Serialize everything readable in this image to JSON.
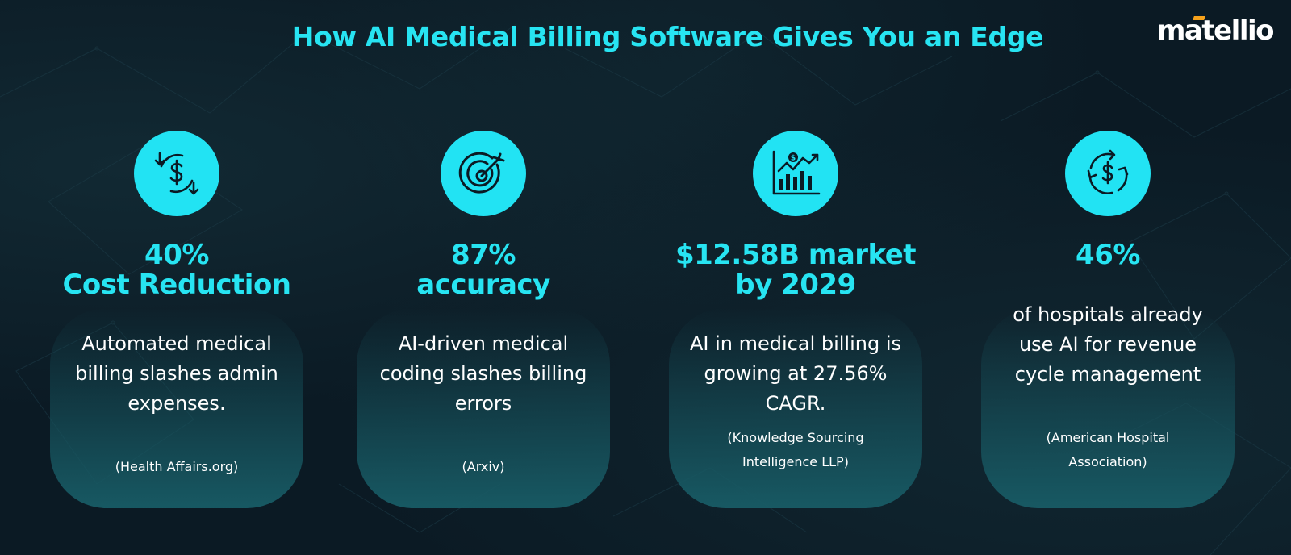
{
  "title": "How AI Medical Billing Software Gives You an Edge",
  "logo": "matellio",
  "colors": {
    "accent": "#27e4f2",
    "background": "#0b1a24",
    "logo_accent": "#f7a21b"
  },
  "cards": [
    {
      "icon": "dollar-cycle-down-icon",
      "headline": [
        "40%",
        "Cost Reduction"
      ],
      "description": [
        "Automated medical",
        "billing slashes admin",
        "expenses."
      ],
      "source": [
        "(Health Affairs.org)"
      ]
    },
    {
      "icon": "target-icon",
      "headline": [
        "87%",
        "accuracy"
      ],
      "description": [
        "AI-driven medical",
        "coding slashes billing",
        "errors"
      ],
      "source": [
        "(Arxiv)"
      ]
    },
    {
      "icon": "growth-chart-icon",
      "headline": [
        "$12.58B market",
        "by 2029"
      ],
      "description": [
        "AI in medical billing is",
        "growing at 27.56%",
        "CAGR."
      ],
      "source": [
        "(Knowledge Sourcing",
        "Intelligence LLP)"
      ]
    },
    {
      "icon": "dollar-recycle-icon",
      "headline": [
        "46%"
      ],
      "description": [
        "of hospitals already",
        "use AI for revenue",
        "cycle management"
      ],
      "source": [
        "(American Hospital",
        "Association)"
      ]
    }
  ]
}
